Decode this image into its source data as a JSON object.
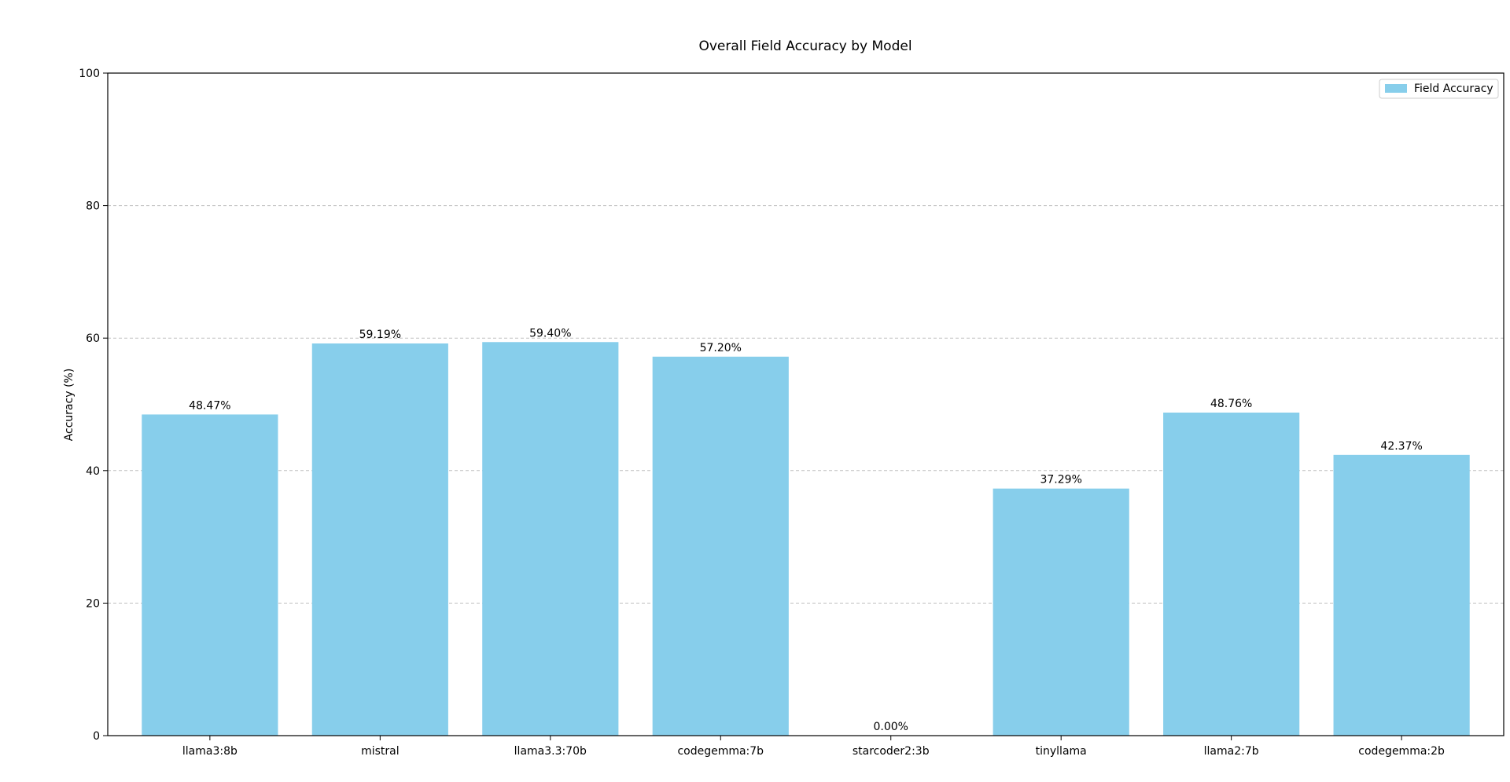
{
  "chart_data": {
    "type": "bar",
    "title": "Overall Field Accuracy by Model",
    "xlabel": "",
    "ylabel": "Accuracy (%)",
    "categories": [
      "llama3:8b",
      "mistral",
      "llama3.3:70b",
      "codegemma:7b",
      "starcoder2:3b",
      "tinyllama",
      "llama2:7b",
      "codegemma:2b"
    ],
    "series": [
      {
        "name": "Field Accuracy",
        "values": [
          48.47,
          59.19,
          59.4,
          57.2,
          0.0,
          37.29,
          48.76,
          42.37
        ],
        "labels": [
          "48.47%",
          "59.19%",
          "59.40%",
          "57.20%",
          "0.00%",
          "37.29%",
          "48.76%",
          "42.37%"
        ],
        "color": "#87ceeb"
      }
    ],
    "ylim": [
      0,
      100
    ],
    "yticks": [
      0,
      20,
      40,
      60,
      80,
      100
    ],
    "ytick_labels": [
      "0",
      "20",
      "40",
      "60",
      "80",
      "100"
    ],
    "grid": "y-dashed",
    "legend": "top-right"
  }
}
